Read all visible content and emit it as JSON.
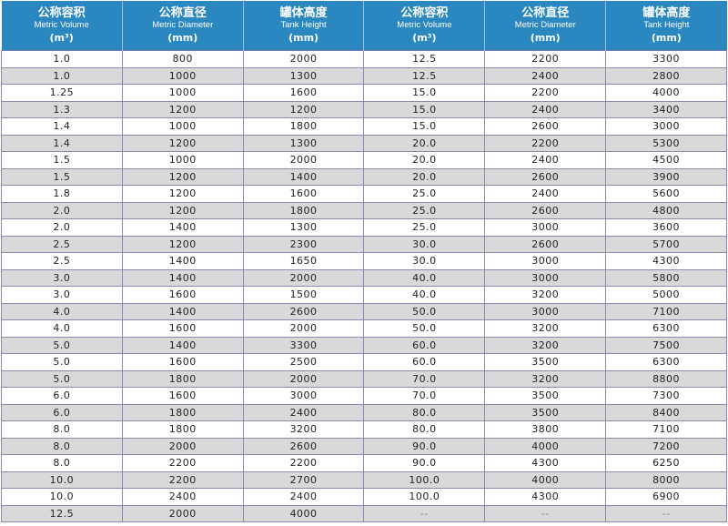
{
  "headers": [
    {
      "zh": "公称容积",
      "en": "Metric Volume",
      "unit": "(m³)"
    },
    {
      "zh": "公称直径",
      "en": "Metric Diameter",
      "unit": "(mm)"
    },
    {
      "zh": "罐体高度",
      "en": "Tank Height",
      "unit": "(mm)"
    },
    {
      "zh": "公称容积",
      "en": "Metric Volume",
      "unit": "(m³)"
    },
    {
      "zh": "公称直径",
      "en": "Metric Diameter",
      "unit": "(mm)"
    },
    {
      "zh": "罐体高度",
      "en": "Tank Height",
      "unit": "(mm)"
    }
  ],
  "rows": [
    [
      "1.0",
      "800",
      "2000",
      "12.5",
      "2200",
      "3300"
    ],
    [
      "1.0",
      "1000",
      "1300",
      "12.5",
      "2400",
      "2800"
    ],
    [
      "1.25",
      "1000",
      "1600",
      "15.0",
      "2200",
      "4000"
    ],
    [
      "1.3",
      "1200",
      "1200",
      "15.0",
      "2400",
      "3400"
    ],
    [
      "1.4",
      "1000",
      "1800",
      "15.0",
      "2600",
      "3000"
    ],
    [
      "1.4",
      "1200",
      "1300",
      "20.0",
      "2200",
      "5300"
    ],
    [
      "1.5",
      "1000",
      "2000",
      "20.0",
      "2400",
      "4500"
    ],
    [
      "1.5",
      "1200",
      "1400",
      "20.0",
      "2600",
      "3900"
    ],
    [
      "1.8",
      "1200",
      "1600",
      "25.0",
      "2400",
      "5600"
    ],
    [
      "2.0",
      "1200",
      "1800",
      "25.0",
      "2600",
      "4800"
    ],
    [
      "2.0",
      "1400",
      "1300",
      "25.0",
      "3000",
      "3600"
    ],
    [
      "2.5",
      "1200",
      "2300",
      "30.0",
      "2600",
      "5700"
    ],
    [
      "2.5",
      "1400",
      "1650",
      "30.0",
      "3000",
      "4300"
    ],
    [
      "3.0",
      "1400",
      "2000",
      "40.0",
      "3000",
      "5800"
    ],
    [
      "3.0",
      "1600",
      "1500",
      "40.0",
      "3200",
      "5000"
    ],
    [
      "4.0",
      "1400",
      "2600",
      "50.0",
      "3000",
      "7100"
    ],
    [
      "4.0",
      "1600",
      "2000",
      "50.0",
      "3200",
      "6300"
    ],
    [
      "5.0",
      "1400",
      "3300",
      "60.0",
      "3200",
      "7500"
    ],
    [
      "5.0",
      "1600",
      "2500",
      "60.0",
      "3500",
      "6300"
    ],
    [
      "5.0",
      "1800",
      "2000",
      "70.0",
      "3200",
      "8800"
    ],
    [
      "6.0",
      "1600",
      "3000",
      "70.0",
      "3500",
      "7300"
    ],
    [
      "6.0",
      "1800",
      "2400",
      "80.0",
      "3500",
      "8400"
    ],
    [
      "8.0",
      "1800",
      "3200",
      "80.0",
      "3800",
      "7100"
    ],
    [
      "8.0",
      "2000",
      "2600",
      "90.0",
      "4000",
      "7200"
    ],
    [
      "8.0",
      "2200",
      "2200",
      "90.0",
      "4300",
      "6250"
    ],
    [
      "10.0",
      "2200",
      "2700",
      "100.0",
      "4000",
      "8000"
    ],
    [
      "10.0",
      "2400",
      "2400",
      "100.0",
      "4300",
      "6900"
    ],
    [
      "12.5",
      "2000",
      "4000",
      "--",
      "--",
      "--"
    ]
  ],
  "colors": {
    "header_bg": "#2a87bf",
    "stripe": "#d9d9d9",
    "border": "#8a8ab0"
  }
}
